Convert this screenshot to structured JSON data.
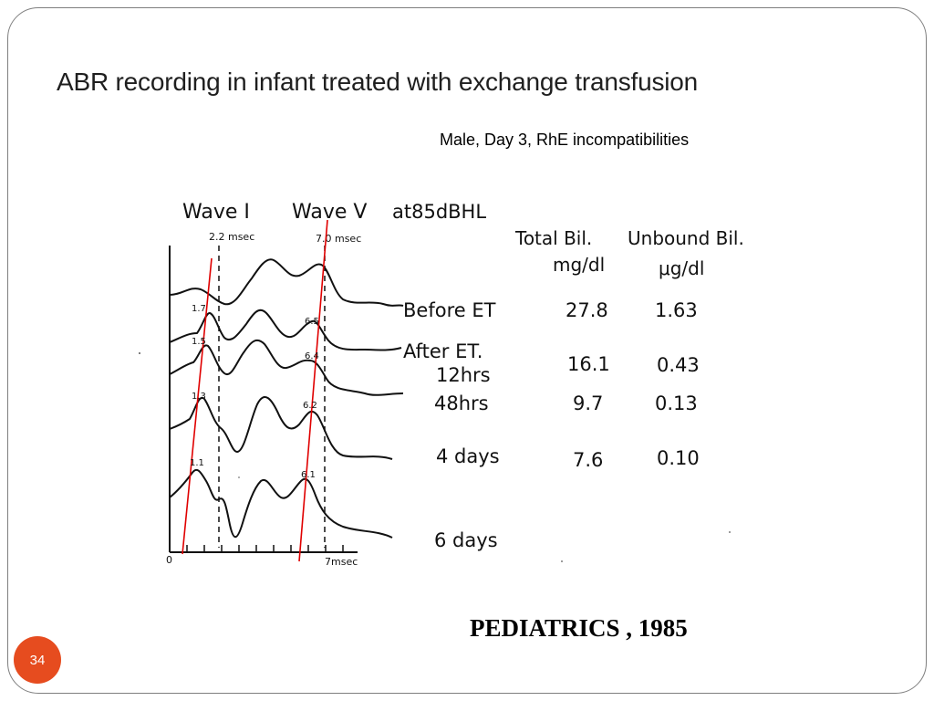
{
  "slide": {
    "title": "ABR recording in infant treated with exchange transfusion",
    "subtitle": "Male, Day 3, RhE incompatibilities",
    "citation": "PEDIATRICS , 1985",
    "page_number": "34"
  },
  "figure": {
    "header": {
      "wave1": "Wave I",
      "wave5": "Wave V",
      "level": "at85dBHL",
      "lat1": "2.2 msec",
      "lat5": "7.0 msec"
    },
    "table_headers": {
      "total": "Total Bil.",
      "total_unit": "mg/dl",
      "unbound": "Unbound Bil.",
      "unbound_unit": "μg/dl"
    },
    "rows": [
      {
        "label": "Before ET",
        "total": "27.8",
        "unbound": "1.63"
      },
      {
        "label": "After ET.",
        "label2": "12hrs",
        "total": "16.1",
        "unbound": "0.43"
      },
      {
        "label": "48hrs",
        "total": "9.7",
        "unbound": "0.13"
      },
      {
        "label": "4 days",
        "total": "7.6",
        "unbound": "0.10"
      },
      {
        "label": "6 days"
      }
    ],
    "trace_marks": {
      "wave1": [
        "1.7",
        "1.5",
        "1.3",
        "1.1"
      ],
      "wave5": [
        "6.5",
        "6.4",
        "6.2",
        "6.1"
      ]
    },
    "axis": {
      "start": "0",
      "end": "7msec"
    },
    "colors": {
      "trend_line": "#e00000",
      "trace": "#111111"
    }
  }
}
